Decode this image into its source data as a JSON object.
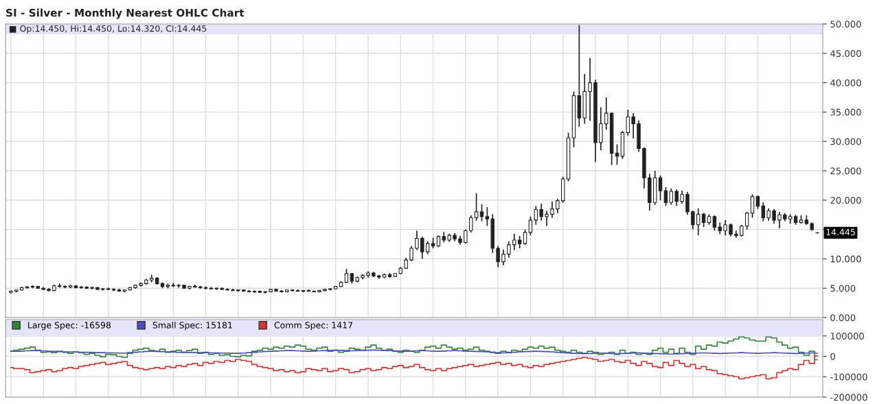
{
  "chart_data": [
    {
      "type": "candlestick",
      "title": "SI - Silver - Monthly Nearest OHLC Chart",
      "categories": [
        null,
        null,
        null,
        null,
        null,
        null,
        null,
        null,
        null,
        null,
        null,
        null,
        null,
        null,
        null,
        null,
        null,
        null,
        null,
        null,
        null,
        null,
        null,
        null,
        null,
        null,
        null,
        null,
        null,
        null,
        null,
        null,
        null,
        null,
        null,
        null,
        null,
        null,
        null,
        null,
        null,
        null,
        null,
        null,
        null,
        null,
        null,
        null,
        null,
        null,
        null,
        null,
        null,
        null,
        null,
        null,
        null,
        null,
        null,
        null,
        null,
        null,
        null,
        null,
        null,
        null,
        null,
        null,
        null,
        null,
        null,
        null,
        null,
        null,
        null,
        null,
        null,
        null,
        null,
        null,
        null,
        null,
        null,
        null,
        null,
        null,
        null,
        null,
        null,
        null,
        null,
        null,
        null,
        null,
        null,
        null,
        null,
        null,
        null,
        null,
        null,
        null,
        null,
        null,
        null,
        null,
        null,
        null,
        null,
        null,
        null,
        null,
        null,
        null,
        null,
        null,
        null,
        null,
        null,
        null,
        null,
        null,
        null,
        null,
        null,
        null,
        null,
        null,
        null,
        null,
        null,
        null,
        null,
        null,
        null,
        null,
        null,
        null,
        null,
        null,
        null,
        null,
        null,
        null,
        null,
        null,
        null,
        null,
        null,
        null
      ],
      "color": "#222222",
      "ohlc": [
        [
          4.3,
          4.6,
          4.1,
          4.5
        ],
        [
          4.5,
          4.8,
          4.3,
          4.7
        ],
        [
          4.7,
          5.2,
          4.6,
          5.1
        ],
        [
          5.1,
          5.4,
          4.9,
          5.2
        ],
        [
          5.2,
          5.5,
          5.0,
          5.3
        ],
        [
          5.3,
          5.4,
          4.9,
          5.0
        ],
        [
          5.0,
          5.2,
          4.7,
          4.8
        ],
        [
          4.8,
          5.0,
          4.5,
          4.6
        ],
        [
          4.6,
          5.6,
          4.5,
          5.4
        ],
        [
          5.4,
          5.8,
          5.1,
          5.3
        ],
        [
          5.3,
          5.5,
          5.0,
          5.2
        ],
        [
          5.2,
          5.6,
          5.0,
          5.4
        ],
        [
          5.4,
          5.5,
          5.0,
          5.1
        ],
        [
          5.1,
          5.4,
          4.9,
          5.2
        ],
        [
          5.2,
          5.3,
          4.9,
          5.0
        ],
        [
          5.0,
          5.3,
          4.8,
          5.1
        ],
        [
          5.1,
          5.2,
          4.7,
          4.8
        ],
        [
          4.8,
          5.0,
          4.6,
          4.9
        ],
        [
          4.9,
          5.1,
          4.7,
          4.8
        ],
        [
          4.8,
          5.0,
          4.5,
          4.7
        ],
        [
          4.7,
          4.9,
          4.4,
          4.5
        ],
        [
          4.5,
          4.8,
          4.3,
          4.7
        ],
        [
          4.7,
          5.2,
          4.6,
          5.1
        ],
        [
          5.1,
          5.6,
          4.9,
          5.5
        ],
        [
          5.5,
          6.0,
          5.3,
          5.8
        ],
        [
          5.8,
          6.6,
          5.6,
          6.4
        ],
        [
          6.4,
          7.3,
          6.0,
          6.7
        ],
        [
          6.7,
          6.9,
          5.6,
          5.8
        ],
        [
          5.8,
          6.0,
          5.0,
          5.3
        ],
        [
          5.3,
          5.8,
          5.0,
          5.5
        ],
        [
          5.5,
          5.9,
          5.2,
          5.4
        ],
        [
          5.4,
          5.7,
          5.1,
          5.5
        ],
        [
          5.5,
          5.6,
          4.9,
          5.0
        ],
        [
          5.0,
          5.4,
          4.8,
          5.3
        ],
        [
          5.3,
          5.6,
          5.1,
          5.2
        ],
        [
          5.2,
          5.4,
          4.9,
          5.1
        ],
        [
          5.1,
          5.3,
          4.8,
          5.0
        ],
        [
          5.0,
          5.2,
          4.8,
          4.9
        ],
        [
          4.9,
          5.1,
          4.7,
          5.0
        ],
        [
          5.0,
          5.1,
          4.7,
          4.8
        ],
        [
          4.8,
          5.0,
          4.6,
          4.7
        ],
        [
          4.7,
          4.9,
          4.5,
          4.6
        ],
        [
          4.6,
          4.8,
          4.4,
          4.7
        ],
        [
          4.7,
          4.8,
          4.4,
          4.5
        ],
        [
          4.5,
          4.7,
          4.3,
          4.4
        ],
        [
          4.4,
          4.6,
          4.2,
          4.5
        ],
        [
          4.5,
          4.6,
          4.2,
          4.3
        ],
        [
          4.3,
          4.5,
          4.1,
          4.4
        ],
        [
          4.4,
          4.9,
          4.3,
          4.8
        ],
        [
          4.8,
          4.9,
          4.4,
          4.5
        ],
        [
          4.5,
          4.7,
          4.3,
          4.4
        ],
        [
          4.4,
          4.8,
          4.3,
          4.7
        ],
        [
          4.7,
          4.8,
          4.4,
          4.6
        ],
        [
          4.6,
          4.8,
          4.4,
          4.5
        ],
        [
          4.5,
          4.7,
          4.3,
          4.6
        ],
        [
          4.6,
          4.8,
          4.4,
          4.5
        ],
        [
          4.5,
          4.6,
          4.3,
          4.4
        ],
        [
          4.4,
          4.7,
          4.3,
          4.6
        ],
        [
          4.6,
          4.9,
          4.5,
          4.8
        ],
        [
          4.8,
          5.0,
          4.6,
          4.9
        ],
        [
          4.9,
          5.4,
          4.8,
          5.3
        ],
        [
          5.3,
          6.2,
          5.2,
          6.0
        ],
        [
          6.0,
          8.3,
          5.9,
          7.5
        ],
        [
          7.5,
          7.6,
          5.8,
          6.2
        ],
        [
          6.2,
          7.0,
          6.0,
          6.8
        ],
        [
          6.8,
          7.4,
          6.5,
          7.2
        ],
        [
          7.2,
          7.9,
          6.8,
          7.6
        ],
        [
          7.6,
          7.8,
          6.9,
          7.1
        ],
        [
          7.1,
          7.3,
          6.6,
          6.9
        ],
        [
          6.9,
          7.5,
          6.7,
          7.3
        ],
        [
          7.3,
          7.6,
          6.8,
          7.0
        ],
        [
          7.0,
          7.6,
          6.9,
          7.5
        ],
        [
          7.5,
          8.6,
          7.4,
          8.4
        ],
        [
          8.4,
          10.2,
          8.3,
          9.8
        ],
        [
          9.8,
          12.2,
          9.6,
          11.8
        ],
        [
          11.8,
          14.8,
          11.5,
          13.5
        ],
        [
          13.5,
          13.8,
          10.0,
          11.2
        ],
        [
          11.2,
          13.0,
          10.8,
          12.6
        ],
        [
          12.6,
          13.6,
          11.8,
          12.2
        ],
        [
          12.2,
          14.0,
          12.0,
          13.8
        ],
        [
          13.8,
          14.6,
          12.8,
          13.2
        ],
        [
          13.2,
          14.3,
          12.9,
          14.0
        ],
        [
          14.0,
          14.4,
          13.0,
          13.4
        ],
        [
          13.4,
          13.9,
          12.4,
          12.8
        ],
        [
          12.8,
          15.0,
          12.6,
          14.8
        ],
        [
          14.8,
          17.4,
          14.5,
          17.0
        ],
        [
          17.0,
          21.2,
          16.5,
          18.0
        ],
        [
          18.0,
          19.3,
          16.4,
          17.2
        ],
        [
          17.2,
          18.8,
          15.6,
          16.8
        ],
        [
          16.8,
          17.6,
          11.0,
          11.8
        ],
        [
          11.8,
          12.2,
          8.6,
          9.5
        ],
        [
          9.5,
          11.6,
          8.9,
          10.8
        ],
        [
          10.8,
          13.0,
          10.2,
          12.4
        ],
        [
          12.4,
          14.3,
          11.5,
          13.2
        ],
        [
          13.2,
          13.9,
          11.8,
          12.6
        ],
        [
          12.6,
          15.0,
          12.4,
          14.5
        ],
        [
          14.5,
          17.2,
          14.0,
          16.6
        ],
        [
          16.6,
          19.0,
          15.8,
          18.4
        ],
        [
          18.4,
          19.4,
          16.5,
          17.2
        ],
        [
          17.2,
          18.2,
          15.6,
          17.6
        ],
        [
          17.6,
          19.8,
          17.0,
          18.5
        ],
        [
          18.5,
          20.2,
          17.8,
          19.9
        ],
        [
          19.9,
          24.0,
          19.6,
          23.6
        ],
        [
          23.6,
          31.5,
          23.2,
          30.6
        ],
        [
          30.6,
          38.5,
          29.0,
          37.8
        ],
        [
          37.8,
          49.8,
          32.5,
          34.0
        ],
        [
          34.0,
          41.5,
          33.0,
          38.5
        ],
        [
          38.5,
          44.2,
          33.5,
          40.0
        ],
        [
          40.0,
          40.5,
          26.5,
          29.8
        ],
        [
          29.8,
          35.8,
          28.5,
          33.0
        ],
        [
          33.0,
          37.5,
          32.0,
          34.8
        ],
        [
          34.8,
          34.9,
          26.0,
          28.0
        ],
        [
          28.0,
          29.5,
          26.0,
          27.5
        ],
        [
          27.5,
          31.8,
          27.0,
          31.5
        ],
        [
          31.5,
          35.4,
          31.0,
          34.2
        ],
        [
          34.2,
          34.8,
          30.5,
          33.0
        ],
        [
          33.0,
          33.6,
          28.2,
          28.8
        ],
        [
          28.8,
          29.0,
          22.0,
          23.8
        ],
        [
          23.8,
          24.5,
          18.2,
          19.6
        ],
        [
          19.6,
          25.0,
          19.2,
          23.8
        ],
        [
          23.8,
          24.2,
          20.0,
          21.6
        ],
        [
          21.6,
          22.2,
          19.0,
          19.6
        ],
        [
          19.6,
          22.0,
          19.2,
          21.5
        ],
        [
          21.5,
          21.8,
          19.0,
          19.8
        ],
        [
          19.8,
          21.6,
          19.4,
          21.0
        ],
        [
          21.0,
          21.4,
          17.5,
          18.0
        ],
        [
          18.0,
          18.2,
          15.0,
          15.8
        ],
        [
          15.8,
          18.6,
          14.0,
          17.6
        ],
        [
          17.6,
          17.8,
          15.4,
          16.2
        ],
        [
          16.2,
          17.6,
          15.8,
          17.2
        ],
        [
          17.2,
          17.4,
          14.8,
          15.4
        ],
        [
          15.4,
          16.2,
          14.2,
          14.8
        ],
        [
          14.8,
          16.6,
          14.0,
          15.8
        ],
        [
          15.8,
          16.0,
          13.8,
          14.2
        ],
        [
          14.2,
          14.8,
          13.6,
          14.0
        ],
        [
          14.0,
          15.8,
          13.8,
          15.6
        ],
        [
          15.6,
          18.0,
          15.0,
          17.8
        ],
        [
          17.8,
          21.0,
          17.0,
          20.6
        ],
        [
          20.6,
          20.8,
          18.5,
          19.0
        ],
        [
          19.0,
          19.6,
          16.4,
          17.0
        ],
        [
          17.0,
          18.6,
          16.5,
          18.2
        ],
        [
          18.2,
          18.5,
          16.0,
          16.6
        ],
        [
          16.6,
          18.0,
          15.2,
          17.5
        ],
        [
          17.5,
          17.8,
          16.4,
          16.8
        ],
        [
          16.8,
          17.6,
          16.0,
          17.2
        ],
        [
          17.2,
          17.5,
          15.8,
          16.2
        ],
        [
          16.2,
          17.4,
          16.0,
          16.6
        ],
        [
          16.6,
          17.4,
          15.8,
          16.0
        ],
        [
          16.0,
          16.2,
          14.8,
          15.0
        ],
        [
          14.45,
          14.45,
          14.32,
          14.445
        ]
      ],
      "ylim": [
        0,
        50
      ],
      "yticks": [
        {
          "value": 0,
          "label": "0.000"
        },
        {
          "value": 5,
          "label": "5.000"
        },
        {
          "value": 10,
          "label": "10.000"
        },
        {
          "value": 15,
          "label": null
        },
        {
          "value": 20,
          "label": "20.000"
        },
        {
          "value": 25,
          "label": "25.000"
        },
        {
          "value": 30,
          "label": "30.000"
        },
        {
          "value": 35,
          "label": "35.000"
        },
        {
          "value": 40,
          "label": "40.000"
        },
        {
          "value": 45,
          "label": "45.000"
        },
        {
          "value": 50,
          "label": "50.000"
        }
      ],
      "tick_labels": "y",
      "grid": true,
      "annotations": [
        "■ Op:14.450, Hi:14.450, Lo:14.320, Cl:14.445",
        "14.445"
      ]
    },
    {
      "type": "step",
      "categories": [
        null,
        null,
        null,
        null,
        null,
        null,
        null,
        null,
        null,
        null,
        null,
        null,
        null,
        null,
        null,
        null,
        null,
        null,
        null,
        null,
        null,
        null,
        null,
        null,
        null,
        null,
        null,
        null,
        null,
        null,
        null,
        null,
        null,
        null,
        null,
        null,
        null,
        null,
        null,
        null,
        null,
        null,
        null,
        null,
        null,
        null,
        null,
        null,
        null,
        null,
        null,
        null,
        null,
        null,
        null,
        null,
        null,
        null,
        null,
        null,
        null,
        null,
        null,
        null,
        null,
        null,
        null,
        null,
        null,
        null,
        null,
        null,
        null,
        null,
        null,
        null,
        null,
        null,
        null,
        null,
        null,
        null,
        null,
        null,
        null,
        null,
        null,
        null,
        null,
        null,
        null,
        null,
        null,
        null,
        null,
        null,
        null,
        null,
        null,
        null,
        null,
        null,
        null,
        null,
        null,
        null,
        null,
        null,
        null,
        null,
        null,
        null,
        null,
        null,
        null,
        null,
        null,
        null,
        null,
        null,
        null,
        null,
        null,
        null,
        null,
        null,
        null,
        null,
        null,
        null,
        null,
        null,
        null,
        null,
        null,
        null,
        null,
        null,
        null,
        null,
        null,
        null,
        null,
        null,
        null,
        null,
        null,
        null,
        null,
        null
      ],
      "series": [
        {
          "name": "Large Spec: -16598",
          "color": "#2e8b2e",
          "values": [
            25000,
            30000,
            35000,
            40000,
            45000,
            30000,
            20000,
            22000,
            18000,
            25000,
            20000,
            15000,
            22000,
            18000,
            10000,
            15000,
            5000,
            -2000,
            10000,
            8000,
            0,
            -5000,
            15000,
            30000,
            35000,
            40000,
            30000,
            25000,
            35000,
            20000,
            25000,
            30000,
            20000,
            28000,
            35000,
            15000,
            20000,
            10000,
            15000,
            5000,
            8000,
            0,
            -2000,
            5000,
            2000,
            25000,
            30000,
            40000,
            35000,
            45000,
            40000,
            50000,
            45000,
            55000,
            50000,
            35000,
            30000,
            40000,
            45000,
            25000,
            30000,
            20000,
            25000,
            40000,
            35000,
            30000,
            45000,
            55000,
            40000,
            30000,
            35000,
            25000,
            20000,
            30000,
            25000,
            20000,
            30000,
            45000,
            50000,
            40000,
            55000,
            45000,
            35000,
            40000,
            30000,
            35000,
            45000,
            30000,
            25000,
            20000,
            15000,
            25000,
            20000,
            30000,
            25000,
            35000,
            45000,
            40000,
            50000,
            40000,
            45000,
            30000,
            25000,
            20000,
            30000,
            20000,
            15000,
            25000,
            20000,
            10000,
            15000,
            20000,
            10000,
            30000,
            15000,
            20000,
            10000,
            15000,
            10000,
            30000,
            40000,
            20000,
            35000,
            15000,
            40000,
            20000,
            10000,
            50000,
            35000,
            55000,
            50000,
            70000,
            65000,
            75000,
            85000,
            95000,
            90000,
            80000,
            75000,
            75000,
            95000,
            90000,
            70000,
            55000,
            40000,
            45000,
            20000,
            5000,
            25000,
            -16598
          ]
        },
        {
          "name": "Small Spec: 15181",
          "color": "#4a4ad0",
          "values": [
            25000,
            25000,
            26000,
            27000,
            28000,
            28000,
            27000,
            25000,
            24000,
            23000,
            22000,
            22000,
            21000,
            20000,
            20000,
            19000,
            18000,
            18000,
            17000,
            17000,
            16000,
            16000,
            18000,
            20000,
            22000,
            24000,
            25000,
            24000,
            23000,
            22000,
            21000,
            20000,
            20000,
            19000,
            19000,
            18000,
            18000,
            17000,
            17000,
            16000,
            16000,
            15000,
            15000,
            16000,
            18000,
            20000,
            22000,
            24000,
            25000,
            26000,
            27000,
            28000,
            28000,
            27000,
            26000,
            25000,
            26000,
            27000,
            28000,
            29000,
            30000,
            29000,
            28000,
            27000,
            28000,
            29000,
            30000,
            31000,
            30000,
            29000,
            28000,
            27000,
            26000,
            25000,
            26000,
            27000,
            28000,
            27000,
            26000,
            25000,
            26000,
            27000,
            28000,
            27000,
            26000,
            25000,
            24000,
            23000,
            22000,
            20000,
            18000,
            17000,
            18000,
            20000,
            22000,
            23000,
            24000,
            25000,
            24000,
            23000,
            22000,
            20000,
            18000,
            16000,
            15000,
            14000,
            13000,
            14000,
            15000,
            16000,
            15000,
            14000,
            13000,
            14000,
            15000,
            16000,
            17000,
            16000,
            15000,
            14000,
            13000,
            12000,
            11000,
            12000,
            13000,
            14000,
            15000,
            16000,
            17000,
            16000,
            15000,
            14000,
            15000,
            16000,
            17000,
            18000,
            17000,
            16000,
            15000,
            16000,
            17000,
            18000,
            17000,
            16000,
            15000,
            14000,
            15000,
            16000,
            17000,
            15181
          ]
        },
        {
          "name": "Comm Spec: 1417",
          "color": "#dd3333",
          "values": [
            -55000,
            -60000,
            -60000,
            -65000,
            -80000,
            -75000,
            -70000,
            -65000,
            -75000,
            -70000,
            -60000,
            -55000,
            -60000,
            -50000,
            -45000,
            -40000,
            -35000,
            -30000,
            -40000,
            -35000,
            -30000,
            -25000,
            -45000,
            -55000,
            -60000,
            -65000,
            -60000,
            -55000,
            -60000,
            -50000,
            -55000,
            -45000,
            -50000,
            -40000,
            -35000,
            -45000,
            -30000,
            -35000,
            -25000,
            -30000,
            -20000,
            -25000,
            -15000,
            -20000,
            -25000,
            -40000,
            -50000,
            -55000,
            -60000,
            -70000,
            -65000,
            -75000,
            -70000,
            -80000,
            -75000,
            -60000,
            -65000,
            -70000,
            -60000,
            -75000,
            -70000,
            -60000,
            -65000,
            -80000,
            -75000,
            -65000,
            -60000,
            -70000,
            -65000,
            -55000,
            -60000,
            -50000,
            -45000,
            -55000,
            -50000,
            -40000,
            -55000,
            -65000,
            -70000,
            -60000,
            -70000,
            -60000,
            -55000,
            -50000,
            -45000,
            -40000,
            -50000,
            -45000,
            -40000,
            -35000,
            -30000,
            -40000,
            -35000,
            -45000,
            -40000,
            -50000,
            -55000,
            -45000,
            -50000,
            -40000,
            -35000,
            -30000,
            -25000,
            -20000,
            -15000,
            -10000,
            -5000,
            -10000,
            -15000,
            -25000,
            -20000,
            -15000,
            -25000,
            -30000,
            -20000,
            -35000,
            -45000,
            -25000,
            -35000,
            -50000,
            -55000,
            -30000,
            -45000,
            -20000,
            -35000,
            -50000,
            -40000,
            -60000,
            -50000,
            -65000,
            -70000,
            -85000,
            -90000,
            -95000,
            -100000,
            -110000,
            -105000,
            -100000,
            -95000,
            -90000,
            -110000,
            -105000,
            -80000,
            -70000,
            -60000,
            -65000,
            -40000,
            -20000,
            -35000,
            1417
          ]
        }
      ],
      "ylim": [
        -200000,
        180000
      ],
      "yticks": [
        -200000,
        -100000,
        0,
        100000
      ],
      "tick_labels": "y",
      "grid": true,
      "legend": "top left"
    }
  ]
}
